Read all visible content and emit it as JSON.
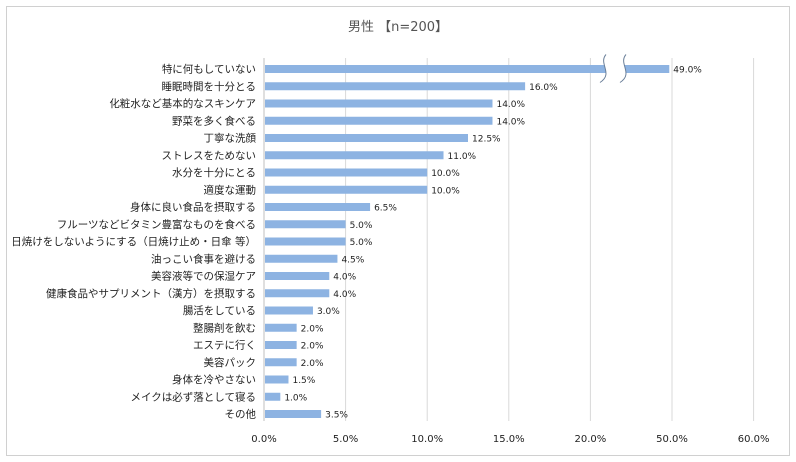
{
  "chart_data": {
    "type": "bar",
    "orientation": "horizontal",
    "title": "男性 【n=200】",
    "xlabel": "",
    "ylabel": "",
    "xlim": [
      0,
      60
    ],
    "axis_break": [
      20,
      50
    ],
    "grid": true,
    "bar_color": "#8db3e2",
    "categories": [
      "特に何もしていない",
      "睡眠時間を十分とる",
      "化粧水など基本的なスキンケア",
      "野菜を多く食べる",
      "丁寧な洗顔",
      "ストレスをためない",
      "水分を十分にとる",
      "適度な運動",
      "身体に良い食品を摂取する",
      "フルーツなどビタミン豊富なものを食べる",
      "日焼けをしないようにする（日焼け止め・日傘 等）",
      "油っこい食事を避ける",
      "美容液等での保湿ケア",
      "健康食品やサプリメント（漢方）を摂取する",
      "腸活をしている",
      "整腸剤を飲む",
      "エステに行く",
      "美容パック",
      "身体を冷やさない",
      "メイクは必ず落として寝る",
      "その他"
    ],
    "values": [
      49.0,
      16.0,
      14.0,
      14.0,
      12.5,
      11.0,
      10.0,
      10.0,
      6.5,
      5.0,
      5.0,
      4.5,
      4.0,
      4.0,
      3.0,
      2.0,
      2.0,
      2.0,
      1.5,
      1.0,
      3.5
    ],
    "value_labels": [
      "49.0%",
      "16.0%",
      "14.0%",
      "14.0%",
      "12.5%",
      "11.0%",
      "10.0%",
      "10.0%",
      "6.5%",
      "5.0%",
      "5.0%",
      "4.5%",
      "4.0%",
      "4.0%",
      "3.0%",
      "2.0%",
      "2.0%",
      "2.0%",
      "1.5%",
      "1.0%",
      "3.5%"
    ],
    "ticks": [
      0,
      5,
      10,
      15,
      20,
      50,
      60
    ],
    "tick_labels": [
      "0.0%",
      "5.0%",
      "10.0%",
      "15.0%",
      "20.0%",
      "50.0%",
      "60.0%"
    ]
  }
}
